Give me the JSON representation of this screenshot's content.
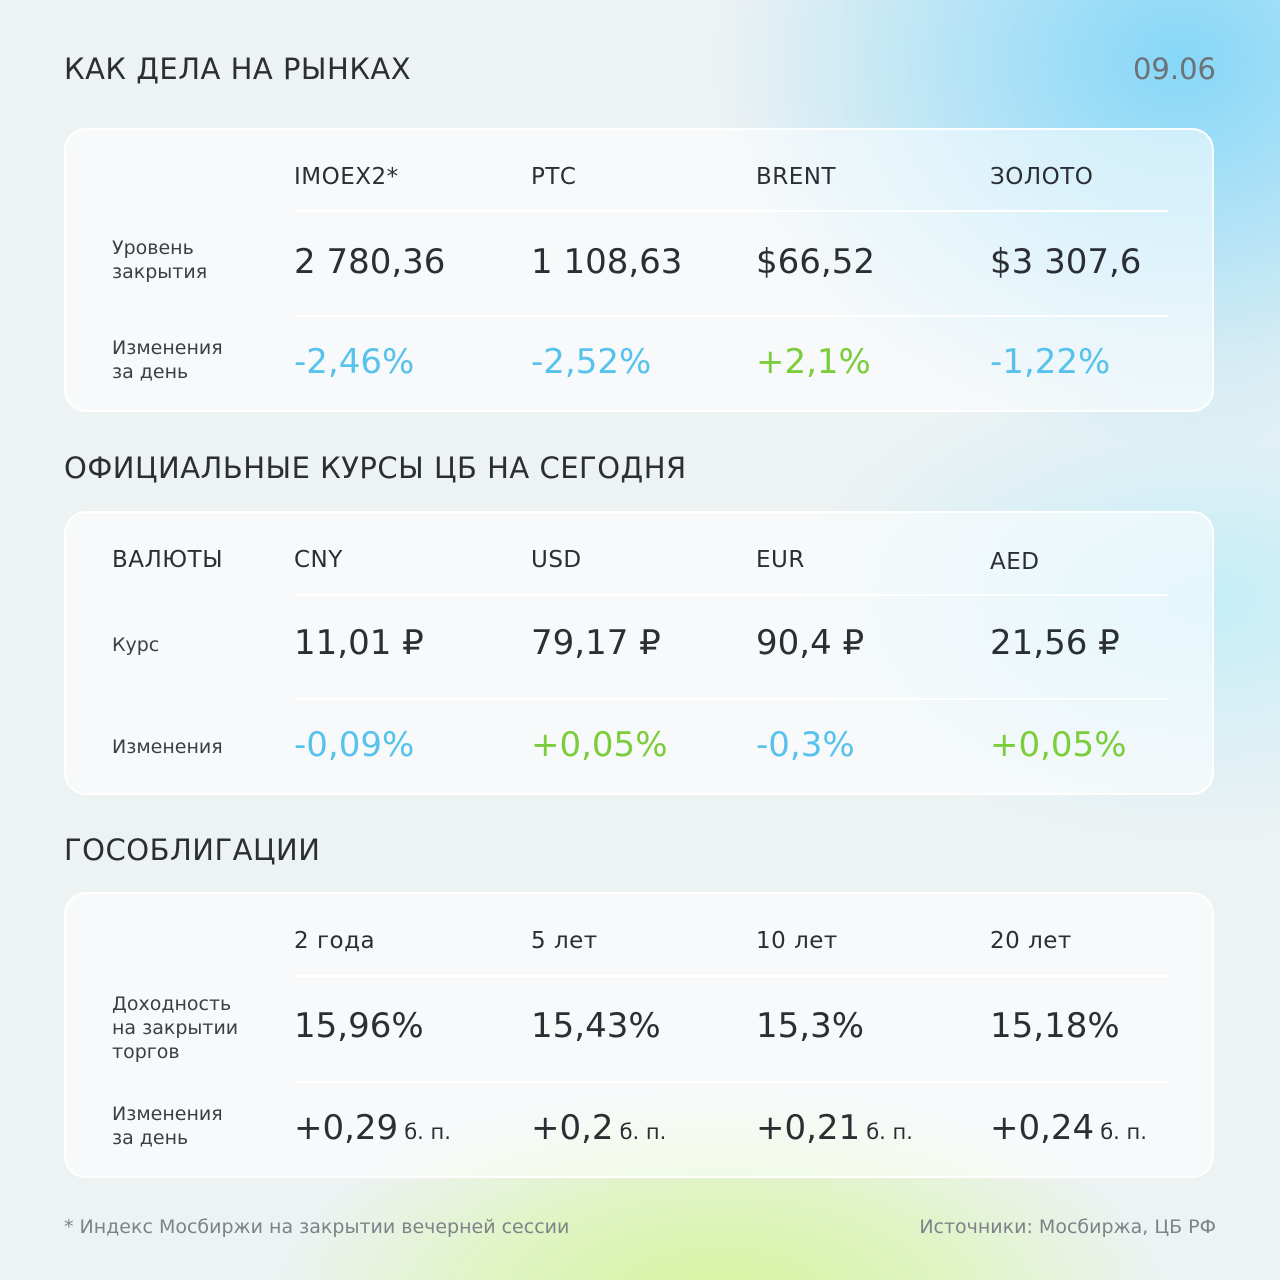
{
  "header": {
    "title": "КАК ДЕЛА НА РЫНКАХ",
    "date": "09.06"
  },
  "markets": {
    "columns": [
      "IMOEX2*",
      "РТС",
      "BRENT",
      "ЗОЛОТО"
    ],
    "close_label": "Уровень\nзакрытия",
    "close_values": [
      "2 780,36",
      "1 108,63",
      "$66,52",
      "$3 307,6"
    ],
    "change_label": "Изменения\nза день",
    "change_values": [
      "-2,46%",
      "-2,52%",
      "+2,1%",
      "-1,22%"
    ]
  },
  "rates": {
    "title": "ОФИЦИАЛЬНЫЕ КУРСЫ ЦБ НА СЕГОДНЯ",
    "corner_label": "ВАЛЮТЫ",
    "columns": [
      "CNY",
      "USD",
      "EUR",
      "AED"
    ],
    "rate_label": "Курс",
    "rate_values": [
      "11,01 ₽",
      "79,17 ₽",
      "90,4 ₽",
      "21,56 ₽"
    ],
    "change_label": "Изменения",
    "change_values": [
      "-0,09%",
      "+0,05%",
      "-0,3%",
      "+0,05%"
    ]
  },
  "bonds": {
    "title": "ГОСОБЛИГАЦИИ",
    "columns": [
      "2 года",
      "5 лет",
      "10 лет",
      "20 лет"
    ],
    "yield_label": "Доходность\nна закрытии\nторгов",
    "yield_values": [
      "15,96%",
      "15,43%",
      "15,3%",
      "15,18%"
    ],
    "change_label": "Изменения\nза день",
    "change_values": [
      "+0,29",
      "+0,2",
      "+0,21",
      "+0,24"
    ],
    "change_unit": "б. п."
  },
  "footer": {
    "note": "* Индекс Мосбиржи на закрытии вечерней сессии",
    "sources": "Источники: Мосбиржа, ЦБ РФ"
  },
  "colors": {
    "negative": "#57c3ec",
    "positive": "#7ccd3c",
    "text": "#2b2f33"
  }
}
